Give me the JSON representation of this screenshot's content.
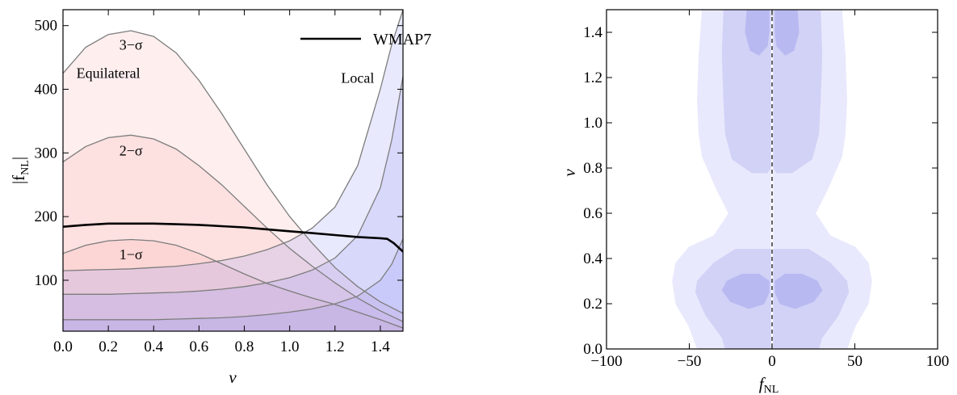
{
  "chart_data": [
    {
      "type": "area",
      "xlabel": "ν",
      "ylabel": "|f_NL|",
      "ylabel_main": "|f",
      "ylabel_sub": "NL",
      "ylabel_close": "|",
      "xlim": [
        0,
        1.5
      ],
      "ylim": [
        20,
        525
      ],
      "x_ticks": [
        0.0,
        0.2,
        0.4,
        0.6,
        0.8,
        1.0,
        1.2,
        1.4
      ],
      "x_tick_labels": [
        "0.0",
        "0.2",
        "0.4",
        "0.6",
        "0.8",
        "1.0",
        "1.2",
        "1.4"
      ],
      "y_ticks": [
        100,
        200,
        300,
        400,
        500
      ],
      "y_tick_labels": [
        "100",
        "200",
        "300",
        "400",
        "500"
      ],
      "legend": [
        {
          "name": "WMAP7",
          "color": "#000000"
        }
      ],
      "annotations": [
        {
          "text": "3−σ",
          "x": 0.3,
          "y": 462
        },
        {
          "text": "2−σ",
          "x": 0.3,
          "y": 296
        },
        {
          "text": "1−σ",
          "x": 0.3,
          "y": 133
        },
        {
          "text": "Equilateral",
          "x": 0.2,
          "y": 418
        },
        {
          "text": "Local",
          "x": 1.3,
          "y": 410
        }
      ],
      "colors": {
        "equilateral": "#f8a8a8",
        "local": "#9a9af5",
        "outline": "#7d7d7d"
      },
      "equilateral_bounds": [
        {
          "sigma": "1-σ",
          "x": [
            0.0,
            0.1,
            0.2,
            0.3,
            0.4,
            0.5,
            0.6,
            0.7,
            0.8,
            0.9,
            1.0,
            1.1,
            1.2,
            1.3,
            1.4,
            1.5
          ],
          "y": [
            142,
            155,
            162,
            164,
            162,
            155,
            142,
            126,
            110,
            95,
            83,
            72,
            62,
            50,
            38,
            25
          ]
        },
        {
          "sigma": "2-σ",
          "x": [
            0.0,
            0.1,
            0.2,
            0.3,
            0.4,
            0.5,
            0.6,
            0.7,
            0.8,
            0.9,
            1.0,
            1.1,
            1.2,
            1.3,
            1.4,
            1.5
          ],
          "y": [
            286,
            310,
            324,
            328,
            322,
            306,
            280,
            250,
            216,
            182,
            150,
            122,
            96,
            72,
            52,
            35
          ]
        },
        {
          "sigma": "3-σ",
          "x": [
            0.0,
            0.1,
            0.2,
            0.3,
            0.4,
            0.5,
            0.6,
            0.7,
            0.8,
            0.9,
            1.0,
            1.1,
            1.2,
            1.3,
            1.4,
            1.5
          ],
          "y": [
            425,
            466,
            486,
            492,
            483,
            457,
            414,
            362,
            306,
            250,
            200,
            158,
            120,
            90,
            66,
            48
          ]
        }
      ],
      "local_bounds": [
        {
          "sigma": "1-σ",
          "x": [
            0.0,
            0.1,
            0.2,
            0.3,
            0.4,
            0.5,
            0.6,
            0.7,
            0.8,
            0.9,
            1.0,
            1.1,
            1.2,
            1.3,
            1.4,
            1.45,
            1.5
          ],
          "y": [
            38,
            38,
            38,
            38,
            38,
            39,
            40,
            41,
            43,
            46,
            50,
            55,
            63,
            75,
            100,
            125,
            165
          ]
        },
        {
          "sigma": "2-σ",
          "x": [
            0.0,
            0.1,
            0.2,
            0.3,
            0.4,
            0.5,
            0.6,
            0.7,
            0.8,
            0.9,
            1.0,
            1.1,
            1.2,
            1.3,
            1.4,
            1.45,
            1.5
          ],
          "y": [
            78,
            78,
            78,
            79,
            80,
            81,
            83,
            86,
            90,
            96,
            104,
            116,
            135,
            170,
            245,
            320,
            420
          ]
        },
        {
          "sigma": "3-σ",
          "x": [
            0.0,
            0.1,
            0.2,
            0.3,
            0.4,
            0.5,
            0.6,
            0.7,
            0.8,
            0.9,
            1.0,
            1.1,
            1.2,
            1.3,
            1.4,
            1.45,
            1.5
          ],
          "y": [
            115,
            116,
            117,
            118,
            120,
            122,
            126,
            131,
            138,
            148,
            162,
            182,
            215,
            280,
            400,
            470,
            525
          ]
        }
      ],
      "series": [
        {
          "name": "WMAP7",
          "x": [
            0.0,
            0.1,
            0.2,
            0.3,
            0.4,
            0.5,
            0.6,
            0.7,
            0.8,
            0.9,
            1.0,
            1.1,
            1.2,
            1.3,
            1.4,
            1.43,
            1.46,
            1.5
          ],
          "y": [
            184,
            187,
            189,
            189,
            189,
            188,
            187,
            185,
            183,
            180,
            177,
            174,
            171,
            168,
            166,
            165,
            158,
            145
          ]
        }
      ]
    },
    {
      "type": "heatmap",
      "xlabel": "f_NL",
      "xlabel_main": "f",
      "xlabel_sub": "NL",
      "ylabel": "ν",
      "xlim": [
        -100,
        100
      ],
      "ylim": [
        0,
        1.5
      ],
      "x_ticks": [
        -100,
        -50,
        0,
        50,
        100
      ],
      "x_tick_labels": [
        "−100",
        "−50",
        "0",
        "50",
        "100"
      ],
      "y_ticks": [
        0.0,
        0.2,
        0.4,
        0.6,
        0.8,
        1.0,
        1.2,
        1.4
      ],
      "y_tick_labels": [
        "0.0",
        "0.2",
        "0.4",
        "0.6",
        "0.8",
        "1.0",
        "1.2",
        "1.4"
      ],
      "colors": {
        "level1": "#e9e9fd",
        "level2": "#d2d2f7",
        "level3": "#b9b9f2",
        "dashed": "#000000"
      },
      "contours": [
        {
          "level": 1,
          "side": "left",
          "points": [
            [
              -1,
              1.5
            ],
            [
              -42,
              1.5
            ],
            [
              -44,
              1.3
            ],
            [
              -45,
              1.1
            ],
            [
              -44,
              0.95
            ],
            [
              -42,
              0.85
            ],
            [
              -33,
              0.7
            ],
            [
              -26,
              0.6
            ],
            [
              -35,
              0.5
            ],
            [
              -50,
              0.45
            ],
            [
              -58,
              0.38
            ],
            [
              -60,
              0.3
            ],
            [
              -58,
              0.2
            ],
            [
              -50,
              0.1
            ],
            [
              -45,
              0.0
            ],
            [
              -1,
              0.0
            ]
          ]
        },
        {
          "level": 1,
          "side": "right",
          "points": [
            [
              1,
              1.5
            ],
            [
              42,
              1.5
            ],
            [
              44,
              1.3
            ],
            [
              45,
              1.1
            ],
            [
              44,
              0.95
            ],
            [
              42,
              0.85
            ],
            [
              33,
              0.7
            ],
            [
              26,
              0.6
            ],
            [
              35,
              0.5
            ],
            [
              50,
              0.45
            ],
            [
              58,
              0.38
            ],
            [
              60,
              0.3
            ],
            [
              58,
              0.2
            ],
            [
              50,
              0.1
            ],
            [
              45,
              0.0
            ],
            [
              1,
              0.0
            ]
          ]
        },
        {
          "level": 2,
          "side": "left",
          "points": [
            [
              -1,
              1.5
            ],
            [
              -29,
              1.5
            ],
            [
              -30,
              1.3
            ],
            [
              -29,
              1.1
            ],
            [
              -28,
              0.95
            ],
            [
              -24,
              0.84
            ],
            [
              -12,
              0.78
            ],
            [
              -3,
              0.78
            ],
            [
              -1,
              0.8
            ]
          ]
        },
        {
          "level": 2,
          "side": "right",
          "points": [
            [
              1,
              1.5
            ],
            [
              29,
              1.5
            ],
            [
              30,
              1.3
            ],
            [
              29,
              1.1
            ],
            [
              28,
              0.95
            ],
            [
              24,
              0.84
            ],
            [
              12,
              0.78
            ],
            [
              3,
              0.78
            ],
            [
              1,
              0.8
            ]
          ]
        },
        {
          "level": 2,
          "side": "left",
          "points": [
            [
              -1,
              0.44
            ],
            [
              -22,
              0.44
            ],
            [
              -35,
              0.38
            ],
            [
              -45,
              0.3
            ],
            [
              -46,
              0.25
            ],
            [
              -40,
              0.15
            ],
            [
              -30,
              0.05
            ],
            [
              -28,
              0.0
            ],
            [
              -1,
              0.0
            ]
          ]
        },
        {
          "level": 2,
          "side": "right",
          "points": [
            [
              1,
              0.44
            ],
            [
              22,
              0.44
            ],
            [
              35,
              0.38
            ],
            [
              45,
              0.3
            ],
            [
              46,
              0.25
            ],
            [
              40,
              0.15
            ],
            [
              30,
              0.05
            ],
            [
              28,
              0.0
            ],
            [
              1,
              0.0
            ]
          ]
        },
        {
          "level": 3,
          "side": "left",
          "points": [
            [
              -2,
              1.5
            ],
            [
              -15,
              1.5
            ],
            [
              -16,
              1.4
            ],
            [
              -13,
              1.32
            ],
            [
              -8,
              1.3
            ],
            [
              -3,
              1.34
            ],
            [
              -2,
              1.4
            ]
          ]
        },
        {
          "level": 3,
          "side": "right",
          "points": [
            [
              2,
              1.5
            ],
            [
              15,
              1.5
            ],
            [
              16,
              1.4
            ],
            [
              13,
              1.32
            ],
            [
              8,
              1.3
            ],
            [
              3,
              1.34
            ],
            [
              2,
              1.4
            ]
          ]
        },
        {
          "level": 3,
          "side": "left",
          "points": [
            [
              -2,
              0.3
            ],
            [
              -8,
              0.33
            ],
            [
              -18,
              0.33
            ],
            [
              -27,
              0.3
            ],
            [
              -30,
              0.26
            ],
            [
              -25,
              0.21
            ],
            [
              -14,
              0.18
            ],
            [
              -5,
              0.2
            ],
            [
              -2,
              0.25
            ]
          ]
        },
        {
          "level": 3,
          "side": "right",
          "points": [
            [
              2,
              0.3
            ],
            [
              8,
              0.33
            ],
            [
              18,
              0.33
            ],
            [
              27,
              0.3
            ],
            [
              30,
              0.26
            ],
            [
              25,
              0.21
            ],
            [
              14,
              0.18
            ],
            [
              5,
              0.2
            ],
            [
              2,
              0.25
            ]
          ]
        }
      ]
    }
  ]
}
